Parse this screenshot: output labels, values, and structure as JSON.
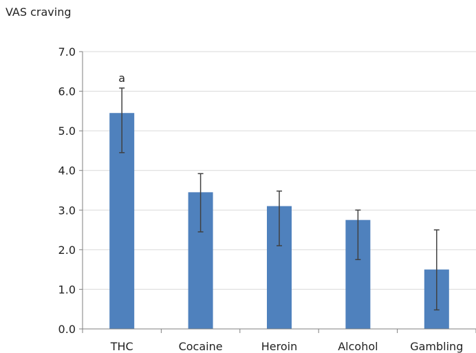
{
  "chart_data": {
    "type": "bar",
    "ylabel": "VAS craving",
    "xlabel": "",
    "title": "",
    "categories": [
      "THC",
      "Cocaine",
      "Heroin",
      "Alcohol",
      "Gambling"
    ],
    "values": [
      5.45,
      3.45,
      3.1,
      2.75,
      1.5
    ],
    "error_upper": [
      6.08,
      3.92,
      3.48,
      3.0,
      2.5
    ],
    "error_lower": [
      4.45,
      2.45,
      2.1,
      1.75,
      0.48
    ],
    "annotations": [
      {
        "category": "THC",
        "text": "a"
      }
    ],
    "ylim": [
      0,
      7
    ],
    "yticks": [
      "0.0",
      "1.0",
      "2.0",
      "3.0",
      "4.0",
      "5.0",
      "6.0",
      "7.0"
    ],
    "grid": true,
    "bar_color": "#4f81bd",
    "error_color": "#404040",
    "grid_color": "#d9d9d9"
  }
}
